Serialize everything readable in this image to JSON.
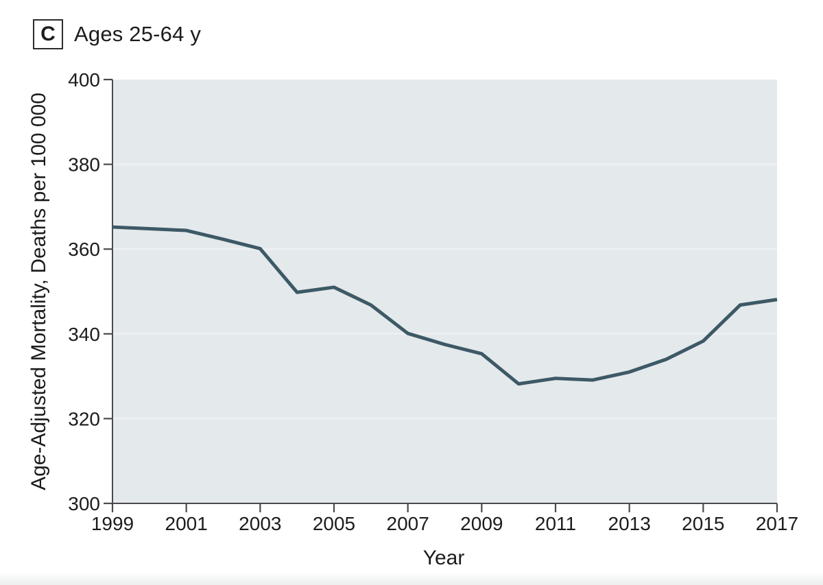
{
  "figure": {
    "panel_label": "C",
    "title": "Ages 25-64 y"
  },
  "chart_data": {
    "type": "line",
    "title": "Ages 25-64 y",
    "panel_label": "C",
    "xlabel": "Year",
    "ylabel": "Age-Adjusted Mortality, Deaths per 100 000",
    "x": [
      1999,
      2000,
      2001,
      2002,
      2003,
      2004,
      2005,
      2006,
      2007,
      2008,
      2009,
      2010,
      2011,
      2012,
      2013,
      2014,
      2015,
      2016,
      2017
    ],
    "values": [
      365.2,
      364.8,
      364.4,
      362.3,
      360.1,
      349.8,
      351.0,
      346.8,
      340.1,
      337.5,
      335.3,
      328.2,
      329.5,
      329.1,
      331.0,
      334.0,
      338.3,
      346.8,
      348.1
    ],
    "xlim": [
      1999,
      2017
    ],
    "ylim": [
      300,
      400
    ],
    "xticks": [
      1999,
      2001,
      2003,
      2005,
      2007,
      2009,
      2011,
      2013,
      2015,
      2017
    ],
    "yticks": [
      300,
      320,
      340,
      360,
      380,
      400
    ],
    "grid": "horizontal",
    "legend": "none",
    "colors": {
      "line": "#3d5966",
      "plot_background": "#e4e9eb",
      "gridline": "#edf0f2",
      "axis": "#4a4a4c",
      "text": "#1c1c1e"
    }
  }
}
